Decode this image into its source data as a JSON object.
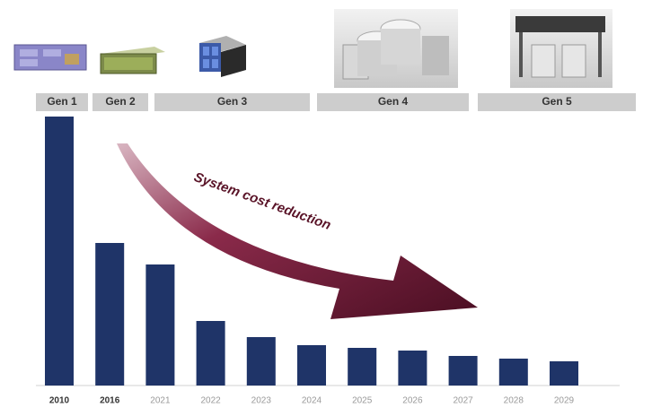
{
  "chart_data": {
    "type": "bar",
    "annotation": "System cost reduction",
    "generations": [
      "Gen 1",
      "Gen 2",
      "Gen 3",
      "Gen 4",
      "Gen 5"
    ],
    "categories": [
      "2010",
      "2016",
      "2021",
      "2022",
      "2023",
      "2024",
      "2025",
      "2026",
      "2027",
      "2028",
      "2029"
    ],
    "values": [
      100,
      53,
      45,
      24,
      18,
      15,
      14,
      13,
      11,
      10,
      9
    ],
    "color": "#1f3468",
    "ylim": [
      0,
      100
    ]
  }
}
